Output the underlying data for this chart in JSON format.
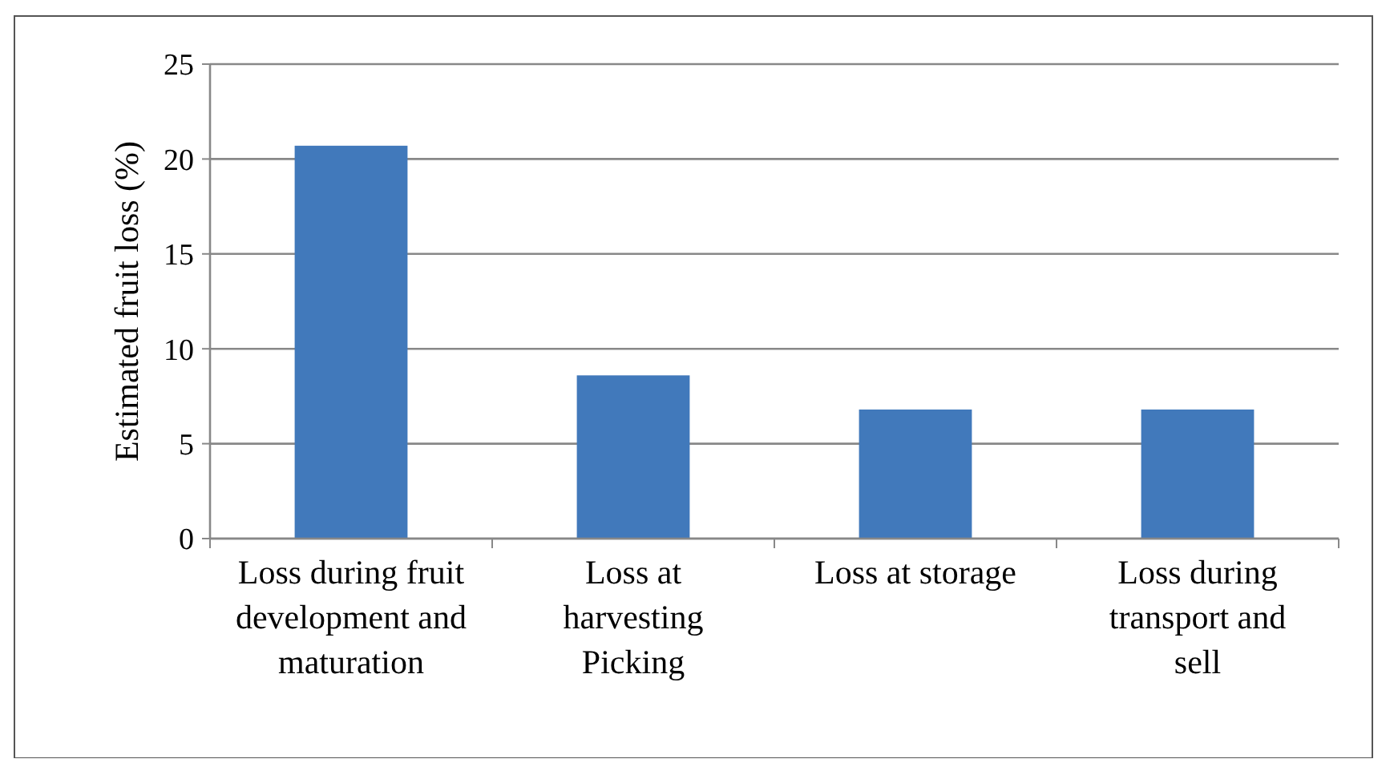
{
  "chart_data": {
    "type": "bar",
    "ylabel": "Estimated fruit loss (%)",
    "categories": [
      "Loss during fruit development and maturation",
      "Loss at harvesting Picking",
      "Loss at storage",
      "Loss during transport and sell"
    ],
    "values": [
      20.7,
      8.6,
      6.8,
      6.8
    ],
    "color": "#4179bb",
    "ylim": [
      0,
      25
    ],
    "yticks": [
      0,
      5,
      10,
      15,
      20,
      25
    ],
    "grid": "y"
  }
}
